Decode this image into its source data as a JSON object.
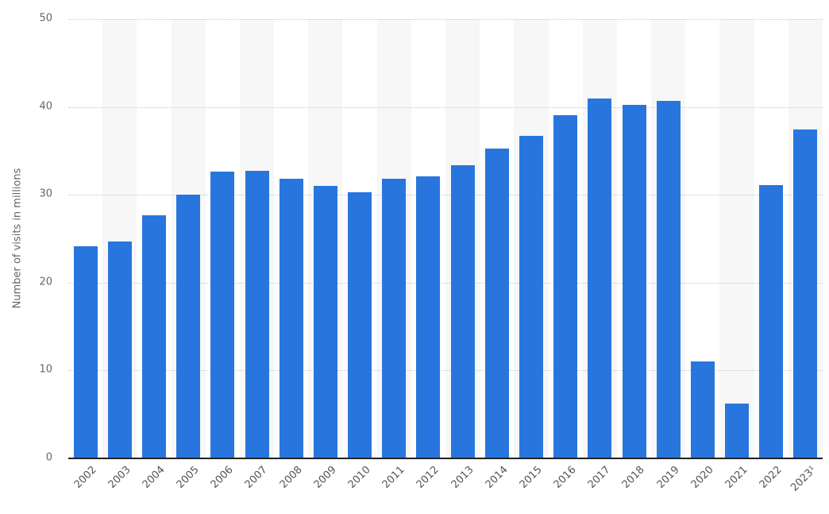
{
  "chart_data": {
    "type": "bar",
    "title": "",
    "xlabel": "",
    "ylabel": "Number of visits in millions",
    "ylim": [
      0,
      50
    ],
    "yticks": [
      0,
      10,
      20,
      30,
      40,
      50
    ],
    "grid": true,
    "legend": null,
    "bar_color": "#2876dd",
    "categories": [
      "2002",
      "2003",
      "2004",
      "2005",
      "2006",
      "2007",
      "2008",
      "2009",
      "2010",
      "2011",
      "2012",
      "2013",
      "2014",
      "2015",
      "2016",
      "2017",
      "2018",
      "2019",
      "2020",
      "2021",
      "2022",
      "2023¹"
    ],
    "values": [
      24.1,
      24.7,
      27.7,
      30.0,
      32.6,
      32.7,
      31.8,
      31.0,
      30.3,
      31.8,
      32.1,
      33.4,
      35.3,
      36.7,
      39.1,
      41.0,
      40.2,
      40.7,
      11.0,
      6.2,
      31.1,
      37.4
    ]
  }
}
